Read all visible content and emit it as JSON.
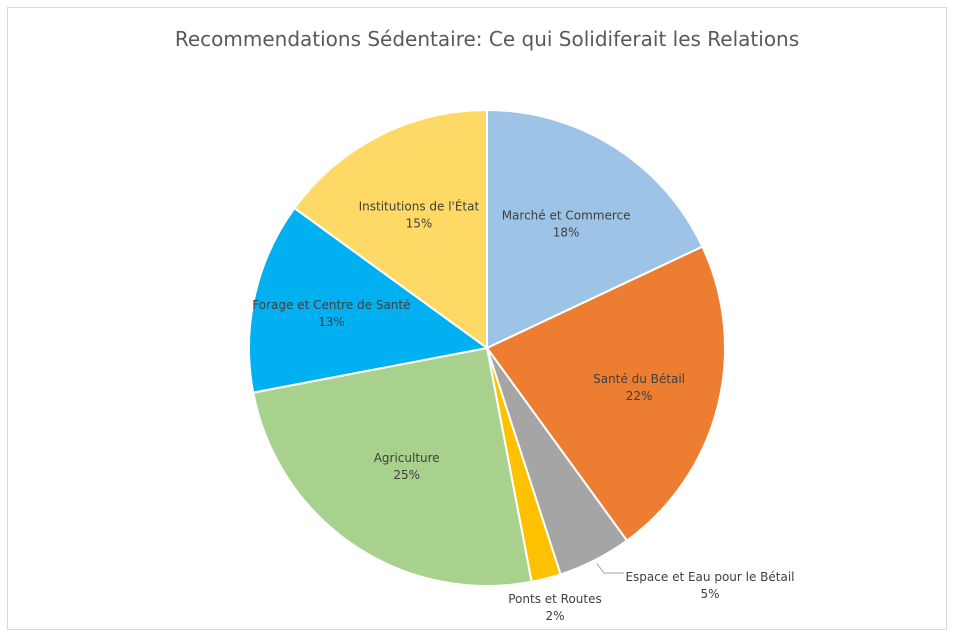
{
  "chart_data": {
    "type": "pie",
    "title": "Recommendations Sédentaire: Ce qui Solidiferait les Relations",
    "unit": "%",
    "slices": [
      {
        "name": "Marché et Commerce",
        "value": 18,
        "label": "18%",
        "color": "#9dc3e6"
      },
      {
        "name": "Santé du Bétail",
        "value": 22,
        "label": "22%",
        "color": "#ed7d31"
      },
      {
        "name": "Espace et Eau pour le Bétail",
        "value": 5,
        "label": "5%",
        "color": "#a5a5a5"
      },
      {
        "name": "Ponts et Routes",
        "value": 2,
        "label": "2%",
        "color": "#ffc000"
      },
      {
        "name": "Agriculture",
        "value": 25,
        "label": "25%",
        "color": "#a9d18e"
      },
      {
        "name": "Forage et Centre de Santé",
        "value": 13,
        "label": "13%",
        "color": "#00b0f0"
      },
      {
        "name": "Institutions de l'État",
        "value": 15,
        "label": "15%",
        "color": "#ffd966"
      }
    ]
  }
}
